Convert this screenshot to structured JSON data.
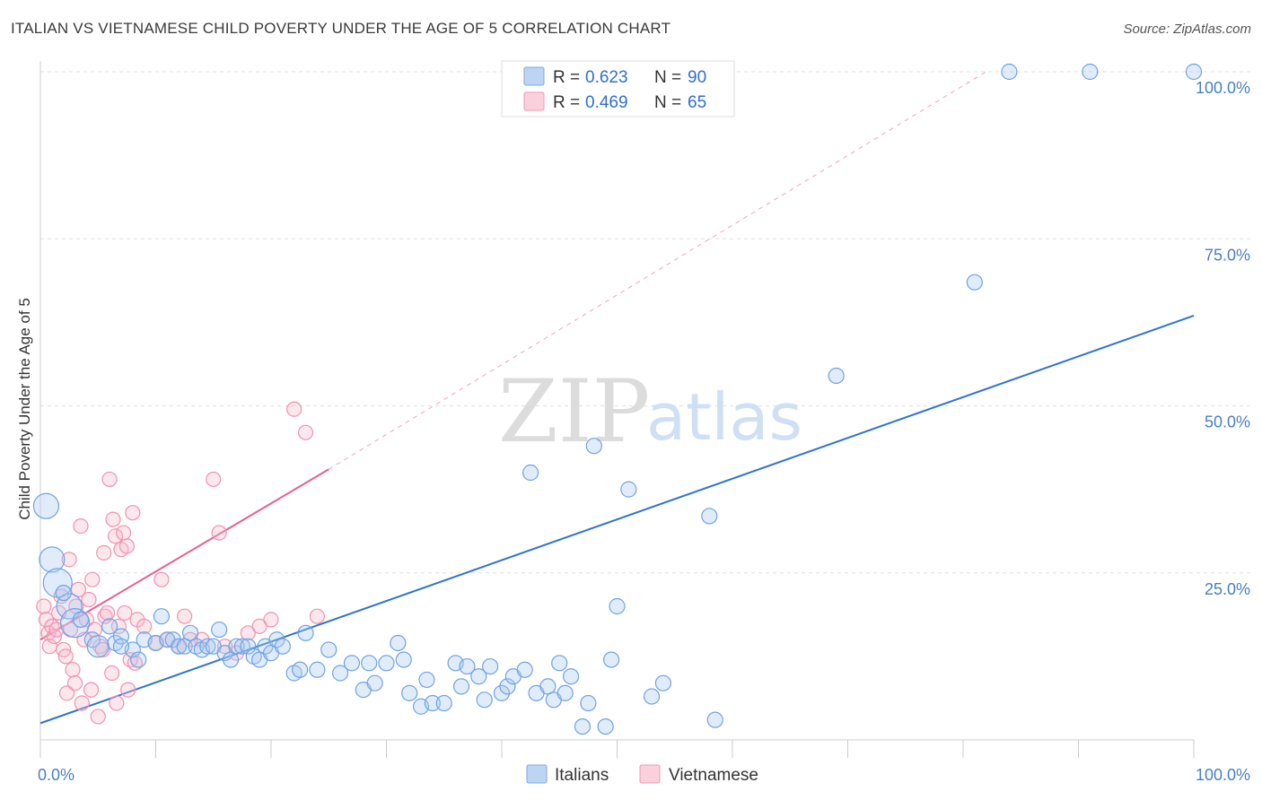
{
  "header": {
    "title": "ITALIAN VS VIETNAMESE CHILD POVERTY UNDER THE AGE OF 5 CORRELATION CHART",
    "source": "Source: ZipAtlas.com"
  },
  "watermark": {
    "zip": "ZIP",
    "atlas": "atlas"
  },
  "legend": {
    "rows": [
      {
        "r_label": "R =",
        "r_value": "0.623",
        "n_label": "N =",
        "n_value": "90",
        "color": "#a9c8f0"
      },
      {
        "r_label": "R =",
        "r_value": "0.469",
        "n_label": "N =",
        "n_value": "65",
        "color": "#f7b9cc"
      }
    ]
  },
  "bottom_legend": {
    "items": [
      "Italians",
      "Vietnamese"
    ]
  },
  "chart_data": {
    "type": "scatter",
    "title": "ITALIAN VS VIETNAMESE CHILD POVERTY UNDER THE AGE OF 5 CORRELATION CHART",
    "ylabel": "Child Poverty Under the Age of 5",
    "xlabel": "",
    "xlim": [
      0,
      100
    ],
    "ylim": [
      0,
      100
    ],
    "x_tick_labels": [
      "0.0%",
      "100.0%"
    ],
    "y_tick_labels": [
      "25.0%",
      "50.0%",
      "75.0%",
      "100.0%"
    ],
    "y_ticks": [
      25,
      50,
      75,
      100
    ],
    "grid": true,
    "legend_position": "top-center",
    "colors": {
      "italians": "#6fa3e3",
      "italians_line": "#2f73d0",
      "vietnamese": "#f092b0",
      "vietnamese_line": "#e8618c"
    },
    "series": [
      {
        "name": "Italians",
        "r": 0.623,
        "n": 90,
        "trend": {
          "x0": 0,
          "y0": 2.5,
          "x1": 100,
          "y1": 63.5
        },
        "points": [
          [
            0.5,
            35
          ],
          [
            1,
            27
          ],
          [
            1.5,
            23.5
          ],
          [
            2.5,
            20
          ],
          [
            3,
            17.5
          ],
          [
            3.5,
            18
          ],
          [
            4.5,
            15
          ],
          [
            5,
            14
          ],
          [
            6,
            17
          ],
          [
            6.5,
            14.5
          ],
          [
            7,
            15.5
          ],
          [
            8,
            13.5
          ],
          [
            8.5,
            12
          ],
          [
            9,
            15
          ],
          [
            10,
            14.5
          ],
          [
            10.5,
            18.5
          ],
          [
            11,
            15
          ],
          [
            11.5,
            15
          ],
          [
            12,
            14
          ],
          [
            12.5,
            14
          ],
          [
            13,
            16
          ],
          [
            13.5,
            14
          ],
          [
            14,
            13.5
          ],
          [
            14.5,
            14
          ],
          [
            15,
            14
          ],
          [
            15.5,
            16.5
          ],
          [
            16,
            13
          ],
          [
            16.5,
            12
          ],
          [
            17,
            14
          ],
          [
            17.5,
            14
          ],
          [
            18,
            14
          ],
          [
            18.5,
            12.5
          ],
          [
            19,
            12
          ],
          [
            19.5,
            14
          ],
          [
            20,
            13
          ],
          [
            20.5,
            15
          ],
          [
            21,
            14
          ],
          [
            22,
            10
          ],
          [
            22.5,
            10.5
          ],
          [
            23,
            16
          ],
          [
            24,
            10.5
          ],
          [
            25,
            13.5
          ],
          [
            26,
            10
          ],
          [
            27,
            11.5
          ],
          [
            28,
            7.5
          ],
          [
            28.5,
            11.5
          ],
          [
            29,
            8.5
          ],
          [
            30,
            11.5
          ],
          [
            31,
            14.5
          ],
          [
            31.5,
            12
          ],
          [
            32,
            7
          ],
          [
            33,
            5
          ],
          [
            33.5,
            9
          ],
          [
            34,
            5.5
          ],
          [
            35,
            5.5
          ],
          [
            36,
            11.5
          ],
          [
            36.5,
            8
          ],
          [
            37,
            11
          ],
          [
            38,
            9.5
          ],
          [
            38.5,
            6
          ],
          [
            39,
            11
          ],
          [
            40,
            7
          ],
          [
            40.5,
            8
          ],
          [
            41,
            9.5
          ],
          [
            42,
            10.5
          ],
          [
            42.5,
            40
          ],
          [
            43,
            7
          ],
          [
            44,
            8
          ],
          [
            44.5,
            6
          ],
          [
            45,
            11.5
          ],
          [
            45.5,
            7
          ],
          [
            46,
            9.5
          ],
          [
            47,
            2
          ],
          [
            47.5,
            5.5
          ],
          [
            48,
            44
          ],
          [
            49,
            2
          ],
          [
            49.5,
            12
          ],
          [
            50,
            20
          ],
          [
            51,
            37.5
          ],
          [
            53,
            6.5
          ],
          [
            54,
            8.5
          ],
          [
            58,
            33.5
          ],
          [
            58.5,
            3
          ],
          [
            69,
            54.5
          ],
          [
            81,
            68.5
          ],
          [
            84,
            100
          ],
          [
            91,
            100
          ],
          [
            100,
            100
          ],
          [
            2,
            22
          ],
          [
            7,
            14
          ]
        ],
        "sizes": {
          "0": 14,
          "1": 14,
          "2": 16,
          "3": 14,
          "4": 16,
          "7": 12
        }
      },
      {
        "name": "Vietnamese",
        "r": 0.469,
        "n": 65,
        "trend": {
          "x0": 0,
          "y0": 15,
          "x1": 25,
          "y1": 40.5,
          "dash_x1": 82,
          "dash_y1": 100
        },
        "points": [
          [
            0.3,
            20
          ],
          [
            0.5,
            18
          ],
          [
            0.7,
            16
          ],
          [
            0.8,
            14
          ],
          [
            1,
            17
          ],
          [
            1.2,
            15.5
          ],
          [
            1.4,
            16.5
          ],
          [
            1.6,
            19
          ],
          [
            1.8,
            21.5
          ],
          [
            2,
            13.5
          ],
          [
            2.2,
            12.5
          ],
          [
            2.3,
            7
          ],
          [
            2.5,
            27
          ],
          [
            2.6,
            16.5
          ],
          [
            2.8,
            10.5
          ],
          [
            3,
            8.5
          ],
          [
            3.1,
            20
          ],
          [
            3.3,
            22.5
          ],
          [
            3.5,
            32
          ],
          [
            3.6,
            5.5
          ],
          [
            3.8,
            15
          ],
          [
            4,
            18
          ],
          [
            4.2,
            21
          ],
          [
            4.4,
            7.5
          ],
          [
            4.5,
            24
          ],
          [
            4.7,
            16.5
          ],
          [
            5,
            3.5
          ],
          [
            5.2,
            14
          ],
          [
            5.4,
            13.5
          ],
          [
            5.5,
            28
          ],
          [
            5.6,
            18.5
          ],
          [
            5.8,
            19
          ],
          [
            6,
            39
          ],
          [
            6.2,
            10
          ],
          [
            6.3,
            33
          ],
          [
            6.5,
            30.5
          ],
          [
            6.6,
            5.5
          ],
          [
            6.8,
            17
          ],
          [
            7,
            28.5
          ],
          [
            7.2,
            31
          ],
          [
            7.3,
            19
          ],
          [
            7.5,
            29
          ],
          [
            7.6,
            7.5
          ],
          [
            7.8,
            12
          ],
          [
            8,
            34
          ],
          [
            8.2,
            11.5
          ],
          [
            8.4,
            18
          ],
          [
            9,
            17
          ],
          [
            10,
            14.5
          ],
          [
            10.5,
            24
          ],
          [
            11,
            15
          ],
          [
            12,
            14
          ],
          [
            12.5,
            18.5
          ],
          [
            13,
            15
          ],
          [
            14,
            15
          ],
          [
            15,
            39
          ],
          [
            15.5,
            31
          ],
          [
            16,
            14
          ],
          [
            17,
            13
          ],
          [
            18,
            16
          ],
          [
            19,
            17
          ],
          [
            20,
            18
          ],
          [
            22,
            49.5
          ],
          [
            23,
            46
          ],
          [
            24,
            18.5
          ]
        ]
      }
    ]
  }
}
